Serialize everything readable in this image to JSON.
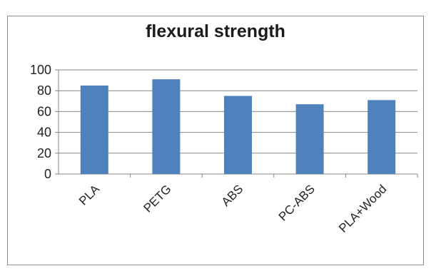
{
  "chart_data": {
    "type": "bar",
    "title": "flexural strength",
    "categories": [
      "PLA",
      "PETG",
      "ABS",
      "PC-ABS",
      "PLA+Wood"
    ],
    "values": [
      85,
      91,
      75,
      67,
      71
    ],
    "ylim": [
      0,
      100
    ],
    "yticks": [
      0,
      20,
      40,
      60,
      80,
      100
    ],
    "xlabel": "",
    "ylabel": "",
    "grid": true,
    "legend": "none",
    "colors": {
      "bar": "#4f81bd",
      "grid": "#868686"
    }
  }
}
